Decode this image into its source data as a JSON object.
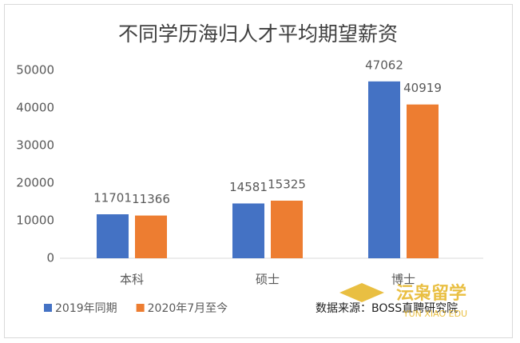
{
  "chart_data": {
    "type": "bar",
    "title": "不同学历海归人才平均期望薪资",
    "categories": [
      "本科",
      "硕士",
      "博士"
    ],
    "series": [
      {
        "name": "2019年同期",
        "color": "#4472c4",
        "values": [
          11701,
          14581,
          47062
        ]
      },
      {
        "name": "2020年7月至今",
        "color": "#ed7d31",
        "values": [
          11366,
          15325,
          40919
        ]
      }
    ],
    "ylim": [
      0,
      50000
    ],
    "yticks": [
      0,
      10000,
      20000,
      30000,
      40000,
      50000
    ],
    "grid": false,
    "legend": "bottom-left",
    "source": "数据来源：BOSS直聘研究院",
    "watermark": {
      "name": "沄枭留学",
      "subtitle": "YUN XIAO EDU"
    }
  }
}
